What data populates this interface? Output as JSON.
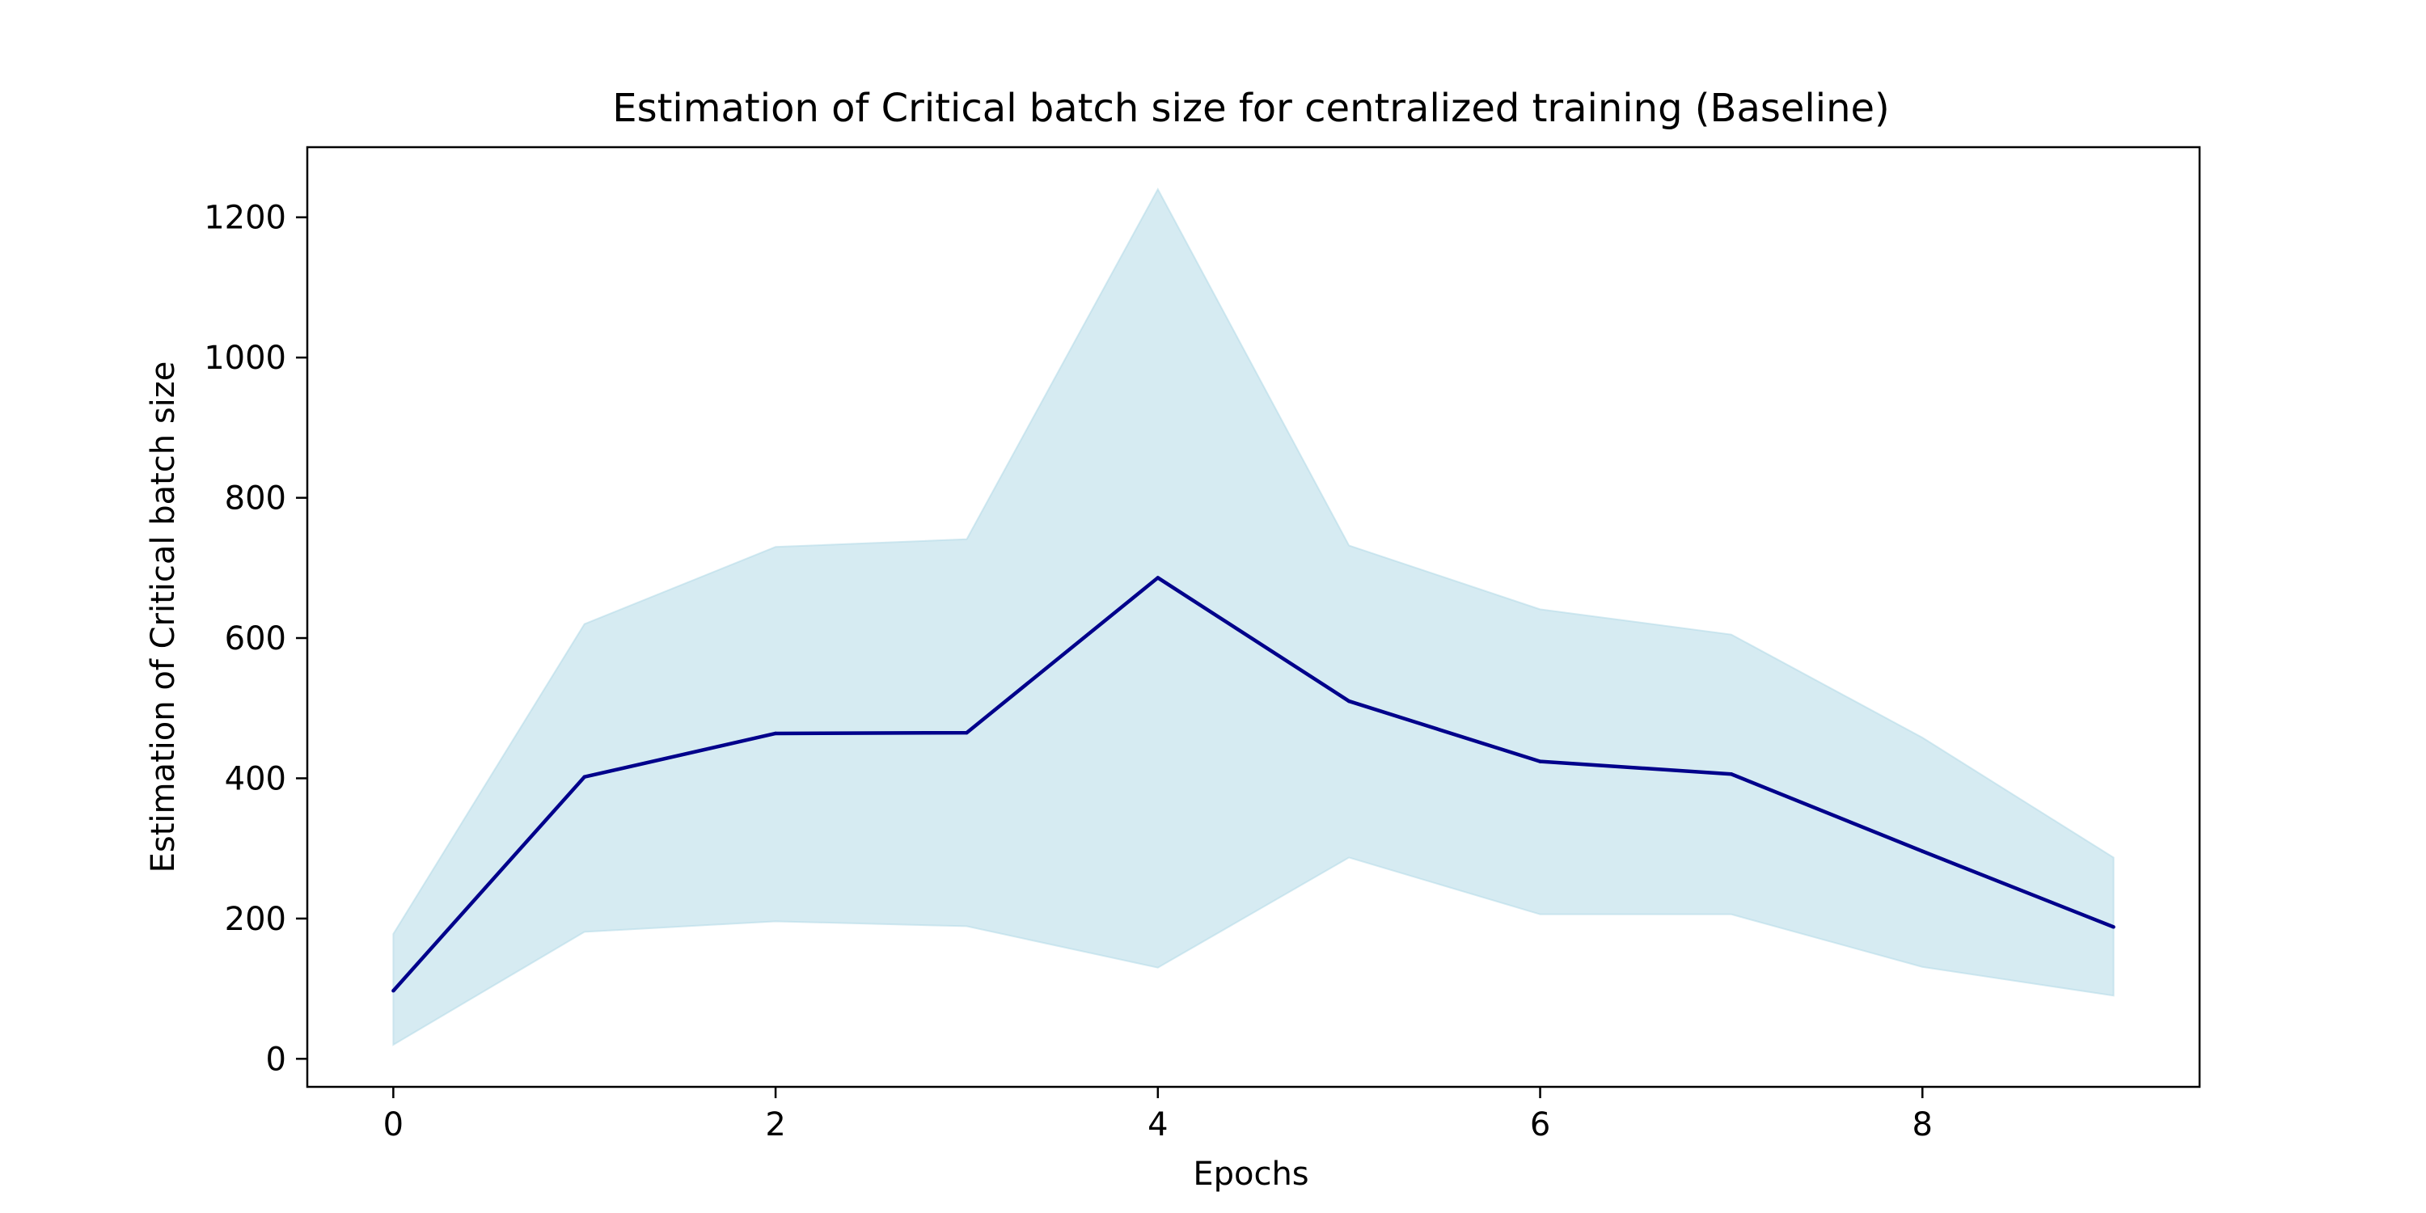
{
  "chart_data": {
    "type": "line",
    "title": "Estimation of Critical batch size for centralized training (Baseline)",
    "xlabel": "Epochs",
    "ylabel": "Estimation of Critical batch size",
    "xlim": [
      -0.45,
      9.45
    ],
    "ylim": [
      -40,
      1300
    ],
    "x_ticks": [
      0,
      2,
      4,
      6,
      8
    ],
    "y_ticks": [
      0,
      200,
      400,
      600,
      800,
      1000,
      1200
    ],
    "grid": false,
    "x": [
      0,
      1,
      2,
      3,
      4,
      5,
      6,
      7,
      8,
      9
    ],
    "series": [
      {
        "values": [
          97,
          402,
          464,
          465,
          686,
          510,
          424,
          406,
          296,
          188
        ],
        "color": "#00008b"
      }
    ],
    "band": {
      "lower": [
        20,
        181,
        196,
        189,
        130,
        287,
        206,
        206,
        131,
        90
      ],
      "upper": [
        178,
        620,
        730,
        741,
        1240,
        732,
        641,
        605,
        458,
        287
      ],
      "color": "#add8e6",
      "opacity": 0.5
    }
  }
}
